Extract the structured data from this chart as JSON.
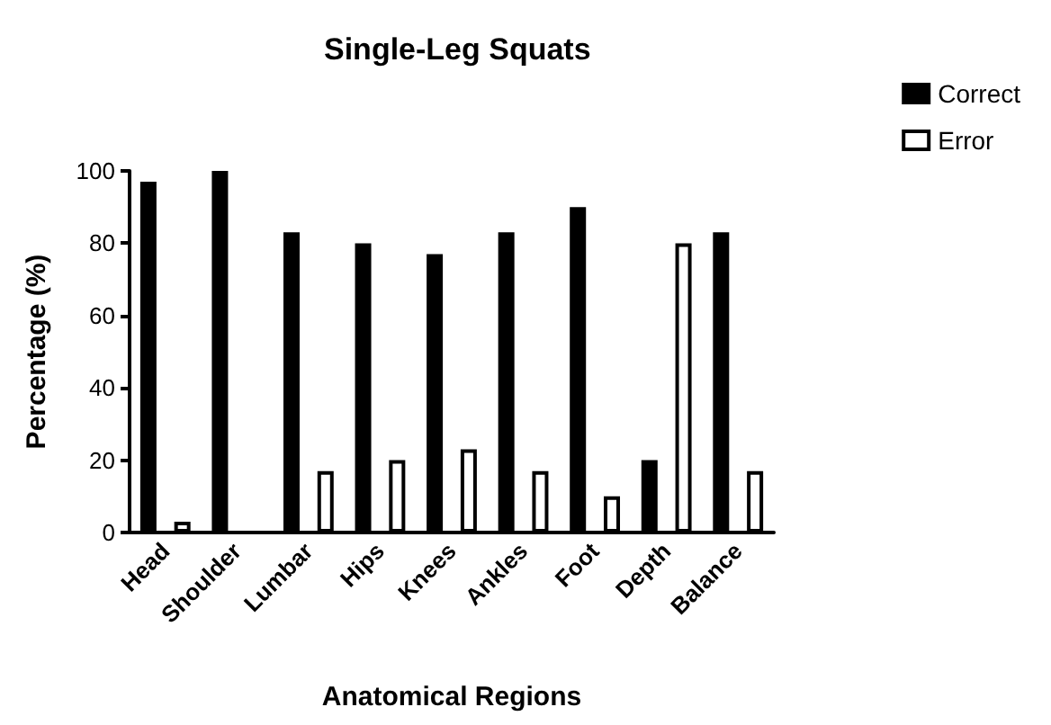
{
  "chart_data": {
    "type": "bar",
    "title": "Single-Leg Squats",
    "xlabel": "Anatomical Regions",
    "ylabel": "Percentage (%)",
    "categories": [
      "Head",
      "Shoulder",
      "Lumbar",
      "Hips",
      "Knees",
      "Ankles",
      "Foot",
      "Depth",
      "Balance"
    ],
    "series": [
      {
        "name": "Correct",
        "color": "#000000",
        "values": [
          97,
          100,
          83,
          80,
          77,
          83,
          90,
          20,
          83
        ]
      },
      {
        "name": "Error",
        "color": "#ffffff",
        "values": [
          3,
          0,
          17,
          20,
          23,
          17,
          10,
          80,
          17
        ]
      }
    ],
    "ylim": [
      0,
      100
    ],
    "yticks": [
      0,
      20,
      40,
      60,
      80,
      100
    ],
    "grid": false,
    "legend": "top right"
  }
}
